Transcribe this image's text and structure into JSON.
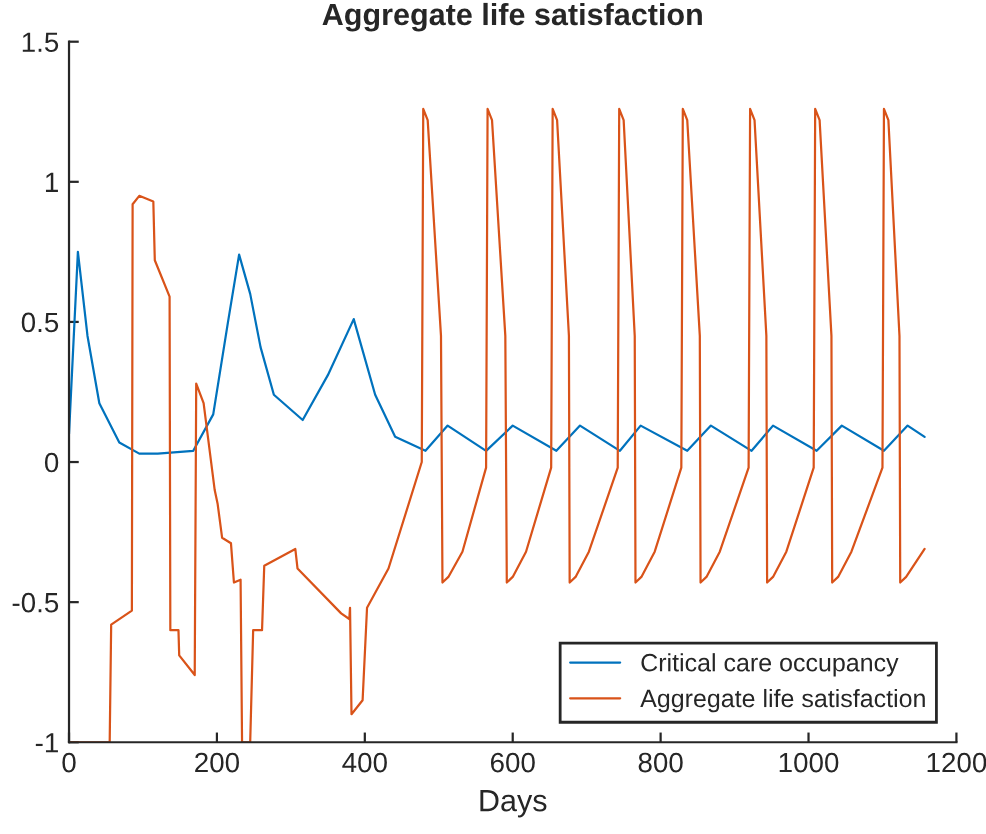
{
  "chart_data": {
    "type": "line",
    "title": "Aggregate life satisfaction",
    "xlabel": "Days",
    "xlim": [
      0,
      1200
    ],
    "xticks": [
      0,
      200,
      400,
      600,
      800,
      1000,
      1200
    ],
    "ylim": [
      -1,
      1.5
    ],
    "yticks": [
      -1,
      -0.5,
      0,
      0.5,
      1,
      1.5
    ],
    "grid": false,
    "legend": "bottom right",
    "series": [
      {
        "name": "Critical care occupancy",
        "color": "#0072bd",
        "x": [
          0,
          12,
          25,
          41,
          68,
          95,
          120,
          168,
          195,
          215,
          230,
          245,
          259,
          277,
          316,
          350,
          385,
          414,
          441,
          482,
          512,
          564,
          600,
          659,
          691,
          745,
          773,
          836,
          868,
          923,
          952,
          1011,
          1045,
          1102,
          1134,
          1157
        ],
        "values": [
          0.1,
          0.75,
          0.45,
          0.21,
          0.07,
          0.03,
          0.03,
          0.04,
          0.17,
          0.5,
          0.74,
          0.6,
          0.41,
          0.24,
          0.15,
          0.31,
          0.51,
          0.24,
          0.09,
          0.04,
          0.13,
          0.04,
          0.13,
          0.04,
          0.13,
          0.04,
          0.13,
          0.04,
          0.13,
          0.04,
          0.13,
          0.04,
          0.13,
          0.04,
          0.13,
          0.09
        ]
      },
      {
        "name": "Aggregate life satisfaction",
        "color": "#d95319",
        "x": [
          0,
          55,
          57,
          85,
          86,
          95,
          114,
          116,
          136,
          137,
          148,
          149,
          170,
          172,
          182,
          197,
          201,
          207,
          219,
          223,
          232,
          234,
          245,
          249,
          261,
          264,
          306,
          309,
          368,
          379,
          380,
          382,
          397,
          403,
          432,
          477,
          479,
          485,
          503,
          505,
          513,
          532,
          564,
          566,
          572,
          590,
          592,
          600,
          618,
          652,
          654,
          660,
          676,
          677,
          685,
          703,
          742,
          744,
          750,
          765,
          766,
          774,
          792,
          828,
          830,
          836,
          853,
          854,
          862,
          880,
          919,
          921,
          927,
          943,
          944,
          952,
          970,
          1007,
          1009,
          1015,
          1031,
          1032,
          1040,
          1058,
          1100,
          1102,
          1108,
          1123,
          1124,
          1132,
          1157
        ],
        "values": [
          -1,
          -1,
          -0.58,
          -0.53,
          0.92,
          0.95,
          0.93,
          0.72,
          0.59,
          -0.6,
          -0.6,
          -0.69,
          -0.76,
          0.28,
          0.21,
          -0.1,
          -0.15,
          -0.27,
          -0.29,
          -0.43,
          -0.42,
          -1,
          -1,
          -0.6,
          -0.6,
          -0.37,
          -0.31,
          -0.38,
          -0.54,
          -0.56,
          -0.52,
          -0.9,
          -0.85,
          -0.52,
          -0.38,
          0.0,
          1.26,
          1.22,
          0.45,
          -0.43,
          -0.41,
          -0.32,
          -0.02,
          1.26,
          1.22,
          0.45,
          -0.43,
          -0.41,
          -0.32,
          -0.02,
          1.26,
          1.22,
          0.45,
          -0.43,
          -0.41,
          -0.32,
          -0.02,
          1.26,
          1.22,
          0.45,
          -0.43,
          -0.41,
          -0.32,
          -0.02,
          1.26,
          1.22,
          0.45,
          -0.43,
          -0.41,
          -0.32,
          -0.02,
          1.26,
          1.22,
          0.45,
          -0.43,
          -0.41,
          -0.32,
          -0.02,
          1.26,
          1.22,
          0.45,
          -0.43,
          -0.41,
          -0.32,
          -0.02,
          1.26,
          1.22,
          0.45,
          -0.43,
          -0.41,
          -0.31
        ]
      }
    ]
  }
}
